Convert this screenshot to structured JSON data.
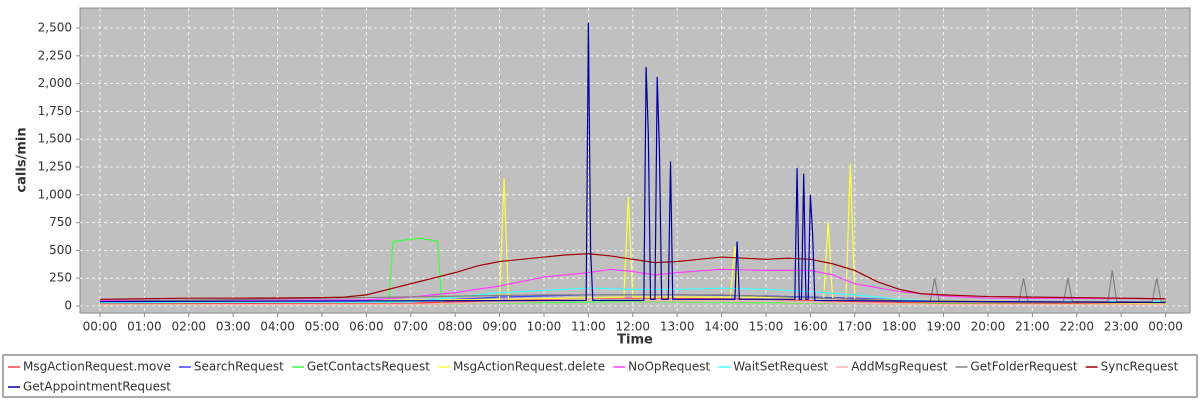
{
  "chart_data": {
    "type": "line",
    "x_label": "Time",
    "y_label": "calls/min",
    "xlim": [
      -0.45,
      24.55
    ],
    "ylim": [
      -63,
      2680
    ],
    "xticks": [
      {
        "value": 0,
        "label": "00:00"
      },
      {
        "value": 1,
        "label": "01:00"
      },
      {
        "value": 2,
        "label": "02:00"
      },
      {
        "value": 3,
        "label": "03:00"
      },
      {
        "value": 4,
        "label": "04:00"
      },
      {
        "value": 5,
        "label": "05:00"
      },
      {
        "value": 6,
        "label": "06:00"
      },
      {
        "value": 7,
        "label": "07:00"
      },
      {
        "value": 8,
        "label": "08:00"
      },
      {
        "value": 9,
        "label": "09:00"
      },
      {
        "value": 10,
        "label": "10:00"
      },
      {
        "value": 11,
        "label": "11:00"
      },
      {
        "value": 12,
        "label": "12:00"
      },
      {
        "value": 13,
        "label": "13:00"
      },
      {
        "value": 14,
        "label": "14:00"
      },
      {
        "value": 15,
        "label": "15:00"
      },
      {
        "value": 16,
        "label": "16:00"
      },
      {
        "value": 17,
        "label": "17:00"
      },
      {
        "value": 18,
        "label": "18:00"
      },
      {
        "value": 19,
        "label": "19:00"
      },
      {
        "value": 20,
        "label": "20:00"
      },
      {
        "value": 21,
        "label": "21:00"
      },
      {
        "value": 22,
        "label": "22:00"
      },
      {
        "value": 23,
        "label": "23:00"
      },
      {
        "value": 24,
        "label": "00:00"
      }
    ],
    "yticks": [
      0,
      250,
      500,
      750,
      {
        "value": 1000,
        "label": "1,000"
      },
      {
        "value": 1250,
        "label": "1,250"
      },
      {
        "value": 1500,
        "label": "1,500"
      },
      {
        "value": 1750,
        "label": "1,750"
      },
      {
        "value": 2000,
        "label": "2,000"
      },
      {
        "value": 2250,
        "label": "2,250"
      },
      {
        "value": 2500,
        "label": "2,500"
      }
    ],
    "grid": true,
    "legend": "bottom",
    "series": [
      {
        "name": "MsgActionRequest.move",
        "color": "#ff4040",
        "x": [
          0,
          7,
          9,
          11,
          13,
          15,
          17,
          19,
          24
        ],
        "values": [
          20,
          25,
          50,
          70,
          70,
          60,
          40,
          25,
          20
        ]
      },
      {
        "name": "SearchRequest",
        "color": "#4040ff",
        "x": [
          0,
          7,
          9,
          11,
          13,
          15,
          17,
          19,
          24
        ],
        "values": [
          30,
          40,
          80,
          100,
          100,
          90,
          70,
          40,
          30
        ]
      },
      {
        "name": "GetContactsRequest",
        "color": "#40ff40",
        "x": [
          0,
          6.5,
          6.6,
          7,
          7.2,
          7.5,
          7.6,
          7.7,
          12,
          18,
          24
        ],
        "values": [
          10,
          15,
          580,
          600,
          610,
          590,
          585,
          20,
          40,
          20,
          10
        ]
      },
      {
        "name": "MsgActionRequest.delete",
        "color": "#ffff40",
        "x": [
          0,
          9.0,
          9.1,
          9.2,
          11.8,
          11.9,
          12.0,
          14.2,
          14.3,
          14.4,
          16.3,
          16.4,
          16.5,
          16.8,
          16.9,
          17.0,
          24
        ],
        "values": [
          30,
          60,
          1150,
          60,
          80,
          980,
          80,
          80,
          540,
          80,
          70,
          760,
          70,
          60,
          1280,
          60,
          20
        ]
      },
      {
        "name": "NoOpRequest",
        "color": "#ff40ff",
        "x": [
          0,
          3,
          6,
          7,
          8,
          9,
          10,
          11,
          11.5,
          12,
          12.5,
          13,
          14,
          15,
          16,
          16.5,
          17,
          18,
          19,
          20,
          24
        ],
        "values": [
          50,
          50,
          55,
          80,
          120,
          180,
          260,
          300,
          330,
          310,
          280,
          300,
          330,
          320,
          320,
          280,
          200,
          130,
          90,
          70,
          65
        ]
      },
      {
        "name": "WaitSetRequest",
        "color": "#40ffff",
        "x": [
          0,
          7,
          8,
          9,
          10,
          11,
          12,
          13,
          14,
          15,
          16,
          17,
          18,
          19,
          24
        ],
        "values": [
          30,
          35,
          80,
          120,
          140,
          160,
          150,
          150,
          160,
          150,
          130,
          100,
          60,
          40,
          40
        ]
      },
      {
        "name": "AddMsgRequest",
        "color": "#ffafaf",
        "x": [
          0,
          7,
          9,
          11,
          13,
          15,
          17,
          19,
          24
        ],
        "values": [
          10,
          15,
          30,
          50,
          45,
          40,
          25,
          12,
          10
        ]
      },
      {
        "name": "GetFolderRequest",
        "color": "#808080",
        "x": [
          0,
          10,
          14,
          17,
          18.7,
          18.8,
          18.9,
          20.7,
          20.8,
          20.9,
          21.7,
          21.8,
          21.9,
          22.7,
          22.8,
          22.9,
          23.7,
          23.8,
          23.9,
          24
        ],
        "values": [
          40,
          100,
          100,
          60,
          40,
          250,
          40,
          40,
          250,
          40,
          40,
          250,
          40,
          40,
          320,
          40,
          40,
          250,
          40,
          40
        ]
      },
      {
        "name": "SyncRequest",
        "color": "#a00000",
        "x": [
          0,
          1,
          2,
          3,
          4,
          5,
          5.5,
          6,
          6.5,
          7,
          7.5,
          8,
          8.5,
          9,
          9.5,
          10,
          10.5,
          11,
          11.5,
          12,
          12.5,
          13,
          13.5,
          14,
          14.5,
          15,
          15.5,
          16,
          16.5,
          17,
          17.5,
          18,
          18.5,
          19,
          20,
          21,
          22,
          23,
          24
        ],
        "values": [
          60,
          65,
          70,
          70,
          72,
          75,
          80,
          100,
          150,
          200,
          250,
          300,
          360,
          400,
          420,
          440,
          460,
          470,
          450,
          420,
          390,
          400,
          420,
          440,
          430,
          420,
          430,
          420,
          380,
          320,
          220,
          150,
          110,
          100,
          85,
          80,
          75,
          70,
          65
        ]
      },
      {
        "name": "GetAppointmentRequest",
        "color": "#0000a0",
        "x": [
          0,
          10.95,
          11.0,
          11.05,
          11.1,
          12.25,
          12.3,
          12.35,
          12.4,
          12.5,
          12.55,
          12.6,
          12.65,
          12.8,
          12.85,
          12.9,
          14.3,
          14.35,
          14.4,
          15.65,
          15.7,
          15.75,
          15.8,
          15.85,
          15.9,
          15.95,
          16.0,
          16.05,
          16.1,
          24
        ],
        "values": [
          40,
          50,
          2550,
          500,
          50,
          50,
          2150,
          1550,
          60,
          60,
          2060,
          1400,
          60,
          60,
          1300,
          60,
          60,
          580,
          60,
          60,
          1240,
          60,
          60,
          1190,
          60,
          60,
          1000,
          650,
          50,
          30
        ]
      }
    ]
  }
}
